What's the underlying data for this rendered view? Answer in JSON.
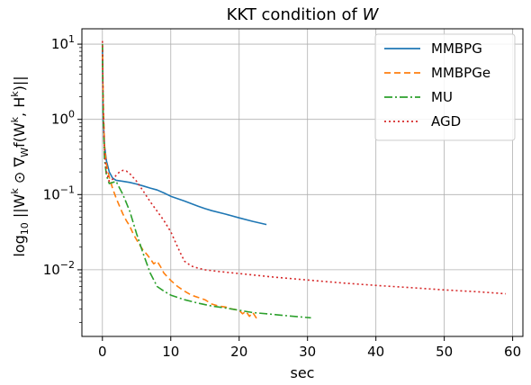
{
  "chart_data": {
    "type": "line",
    "title_prefix": "KKT condition of ",
    "title_var": "W",
    "xlabel": "sec",
    "ylabel_parts": {
      "log": "log",
      "sub": "10",
      "expr1": " ||W",
      "sup1": "k",
      "expr2": " ⊙ ∇",
      "sub2": "W",
      "expr3": "f(W",
      "sup3": "k",
      "expr4": ", H",
      "sup4": "k",
      "expr5": ")||"
    },
    "xlim": [
      -3,
      61.5
    ],
    "ylim": [
      0.0013,
      16
    ],
    "yscale": "log",
    "grid": true,
    "legend_position": "upper right",
    "xticks": [
      0,
      10,
      20,
      30,
      40,
      50,
      60
    ],
    "xtick_labels": [
      "0",
      "10",
      "20",
      "30",
      "40",
      "50",
      "60"
    ],
    "yticks": [
      0.01,
      0.1,
      1,
      10
    ],
    "ytick_labels": [
      {
        "base": "10",
        "exp": "−2"
      },
      {
        "base": "10",
        "exp": "−1"
      },
      {
        "base": "10",
        "exp": "0"
      },
      {
        "base": "10",
        "exp": "1"
      }
    ],
    "series": [
      {
        "name": "MMBPG",
        "color": "#1f77b4",
        "dash": "",
        "x": [
          0,
          0.1,
          0.3,
          0.6,
          1,
          1.5,
          2,
          3,
          4,
          5,
          6,
          7,
          8,
          9,
          10,
          12,
          14,
          15,
          16,
          18,
          20,
          22,
          24
        ],
        "y": [
          9,
          1.0,
          0.45,
          0.28,
          0.2,
          0.165,
          0.155,
          0.15,
          0.145,
          0.138,
          0.13,
          0.122,
          0.115,
          0.105,
          0.095,
          0.082,
          0.07,
          0.065,
          0.061,
          0.055,
          0.049,
          0.044,
          0.04
        ]
      },
      {
        "name": "MMBPGe",
        "color": "#ff7f0e",
        "dash": "7,4",
        "x": [
          0,
          0.1,
          0.3,
          0.6,
          1,
          1.5,
          2,
          2.5,
          3,
          3.5,
          4,
          4.5,
          5,
          5.5,
          6,
          6.5,
          7,
          7.5,
          8,
          8.5,
          9,
          10,
          11,
          12,
          13,
          14,
          15,
          16,
          17,
          18,
          19,
          20,
          20.5,
          21,
          21.5,
          22,
          22.5,
          23
        ],
        "y": [
          10,
          2.0,
          0.45,
          0.25,
          0.17,
          0.12,
          0.09,
          0.07,
          0.055,
          0.045,
          0.038,
          0.03,
          0.025,
          0.021,
          0.018,
          0.016,
          0.014,
          0.012,
          0.013,
          0.011,
          0.009,
          0.0072,
          0.006,
          0.0052,
          0.0046,
          0.0043,
          0.004,
          0.0035,
          0.0033,
          0.0032,
          0.003,
          0.0029,
          0.0026,
          0.0028,
          0.0024,
          0.0027,
          0.0023,
          0.0024
        ]
      },
      {
        "name": "MU",
        "color": "#2ca02c",
        "dash": "9,3,2,3",
        "x": [
          0,
          0.1,
          0.3,
          0.6,
          1,
          1.5,
          2,
          3,
          4,
          5,
          6,
          7,
          8,
          9,
          10,
          12,
          14,
          16,
          18,
          20,
          22,
          24,
          26,
          28,
          30.5
        ],
        "y": [
          10,
          1.2,
          0.3,
          0.18,
          0.14,
          0.145,
          0.15,
          0.1,
          0.06,
          0.03,
          0.016,
          0.009,
          0.006,
          0.0052,
          0.0046,
          0.004,
          0.0036,
          0.0033,
          0.0031,
          0.0029,
          0.0027,
          0.0026,
          0.0025,
          0.0024,
          0.0023
        ]
      },
      {
        "name": "AGD",
        "color": "#d62728",
        "dash": "2,3",
        "x": [
          0,
          0.1,
          0.3,
          0.6,
          1,
          1.5,
          2,
          2.5,
          3,
          3.5,
          4,
          5,
          6,
          7,
          8,
          9,
          10,
          11,
          11.5,
          12,
          13,
          14,
          15,
          17,
          20,
          25,
          30,
          35,
          40,
          45,
          50,
          55,
          59
        ],
        "y": [
          11,
          1.5,
          0.35,
          0.2,
          0.15,
          0.16,
          0.18,
          0.2,
          0.21,
          0.205,
          0.19,
          0.15,
          0.11,
          0.08,
          0.06,
          0.045,
          0.032,
          0.02,
          0.016,
          0.013,
          0.0112,
          0.0105,
          0.01,
          0.0095,
          0.0089,
          0.008,
          0.0073,
          0.0067,
          0.0062,
          0.0058,
          0.0054,
          0.0051,
          0.0048
        ]
      }
    ]
  }
}
